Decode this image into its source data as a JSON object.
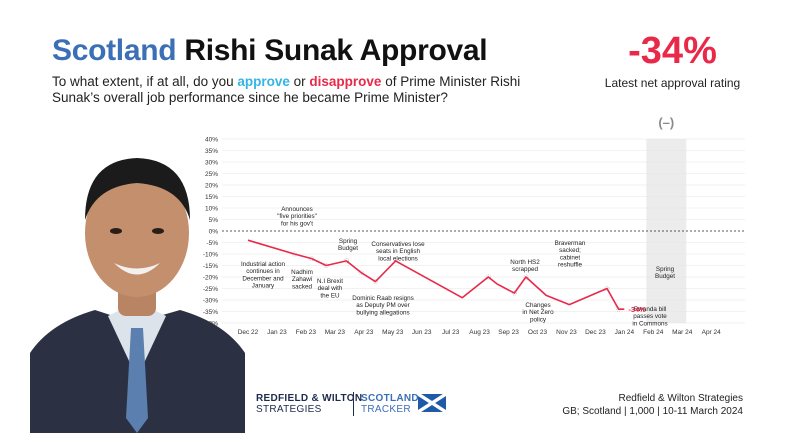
{
  "header": {
    "title_region": "Scotland",
    "title_rest": "Rishi Sunak Approval",
    "subtitle_pre": "To what extent, if at all, do you ",
    "subtitle_approve": "approve",
    "subtitle_mid": " or ",
    "subtitle_disapprove": "disapprove",
    "subtitle_post": " of Prime Minister Rishi Sunak’s overall job performance since he became Prime Minister?"
  },
  "net": {
    "value": "-34%",
    "label": "Latest net approval rating"
  },
  "footer": {
    "brand_line1": "REDFIELD & WILTON",
    "brand_line2": "STRATEGIES",
    "tracker_line1": "SCOTLAND",
    "tracker_line2": "TRACKER",
    "source_line1": "Redfield & Wilton Strategies",
    "source_line2": "GB; Scotland | 1,000 | 10-11 March 2024"
  },
  "colors": {
    "accent": "#e8294a",
    "approve": "#33b5e5",
    "brand": "#3b6fb6",
    "navy": "#1d2b4c"
  },
  "chart_data": {
    "type": "line",
    "x_labels": [
      "Dec 22",
      "Jan 23",
      "Feb 23",
      "Mar 23",
      "Apr 23",
      "May 23",
      "Jun 23",
      "Jul 23",
      "Aug 23",
      "Sep 23",
      "Oct 23",
      "Nov 23",
      "Dec 23",
      "Jan 24",
      "Feb 24",
      "Mar 24",
      "Apr 24"
    ],
    "y_ticks": [
      "40%",
      "35%",
      "30%",
      "25%",
      "20%",
      "15%",
      "10%",
      "5%",
      "0%",
      "-5%",
      "-10%",
      "-15%",
      "-20%",
      "-25%",
      "-30%",
      "-35%",
      "-40%"
    ],
    "ylim": [
      -40,
      40
    ],
    "grid": true,
    "series": [
      {
        "values": [
          [
            0.0,
            -4
          ],
          [
            1.6,
            -10
          ],
          [
            2.2,
            -12
          ],
          [
            2.7,
            -15
          ],
          [
            3.4,
            -13
          ],
          [
            3.9,
            -18
          ],
          [
            4.4,
            -22
          ],
          [
            5.1,
            -13
          ],
          [
            7.4,
            -29
          ],
          [
            8.3,
            -20
          ],
          [
            8.6,
            -23
          ],
          [
            9.2,
            -27
          ],
          [
            9.6,
            -20
          ],
          [
            10.3,
            -28
          ],
          [
            11.1,
            -32
          ],
          [
            12.4,
            -25
          ],
          [
            12.8,
            -34
          ],
          [
            13.0,
            -34
          ]
        ]
      }
    ],
    "latest_label": "-34%",
    "shaded_period_label": "(–)",
    "annotations": [
      {
        "text": [
          "Industrial action",
          "continues in",
          "December and",
          "January"
        ]
      },
      {
        "text": [
          "Announces",
          "\"five priorities\"",
          "for his gov't"
        ]
      },
      {
        "text": [
          "Nadhim",
          "Zahawi",
          "sacked"
        ]
      },
      {
        "text": [
          "N.I Brexit",
          "deal with",
          "the EU"
        ]
      },
      {
        "text": [
          "Spring",
          "Budget"
        ]
      },
      {
        "text": [
          "Conservatives lose",
          "seats in English",
          "local elections"
        ]
      },
      {
        "text": [
          "Dominic Raab resigns",
          "as Deputy PM over",
          "bullying allegations"
        ]
      },
      {
        "text": [
          "North HS2",
          "scrapped"
        ]
      },
      {
        "text": [
          "Changes",
          "in Net Zero",
          "policy"
        ]
      },
      {
        "text": [
          "Braverman",
          "sacked;",
          "cabinet",
          "reshuffle"
        ]
      },
      {
        "text": [
          "Spring",
          "Budget"
        ]
      },
      {
        "text": [
          "Rwanda bill",
          "passes vote",
          "in Commons"
        ]
      }
    ]
  }
}
